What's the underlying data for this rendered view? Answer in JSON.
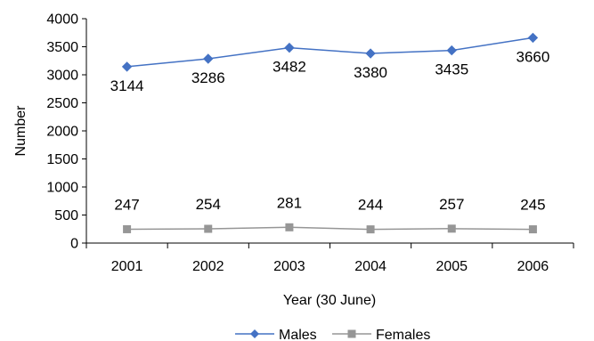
{
  "chart_data": {
    "type": "line",
    "title": "",
    "xlabel": "Year (30 June)",
    "ylabel": "Number",
    "categories": [
      "2001",
      "2002",
      "2003",
      "2004",
      "2005",
      "2006"
    ],
    "ylim": [
      0,
      4000
    ],
    "yticks": [
      0,
      500,
      1000,
      1500,
      2000,
      2500,
      3000,
      3500,
      4000
    ],
    "grid": false,
    "legend_position": "bottom",
    "series": [
      {
        "name": "Males",
        "values": [
          3144,
          3286,
          3482,
          3380,
          3435,
          3660
        ],
        "color": "#4472C4",
        "marker": "diamond",
        "labels": [
          "3144",
          "3286",
          "3482",
          "3380",
          "3435",
          "3660"
        ],
        "label_position": "below"
      },
      {
        "name": "Females",
        "values": [
          247,
          254,
          281,
          244,
          257,
          245
        ],
        "color": "#969696",
        "marker": "square",
        "labels": [
          "247",
          "254",
          "281",
          "244",
          "257",
          "245"
        ],
        "label_position": "above"
      }
    ]
  }
}
